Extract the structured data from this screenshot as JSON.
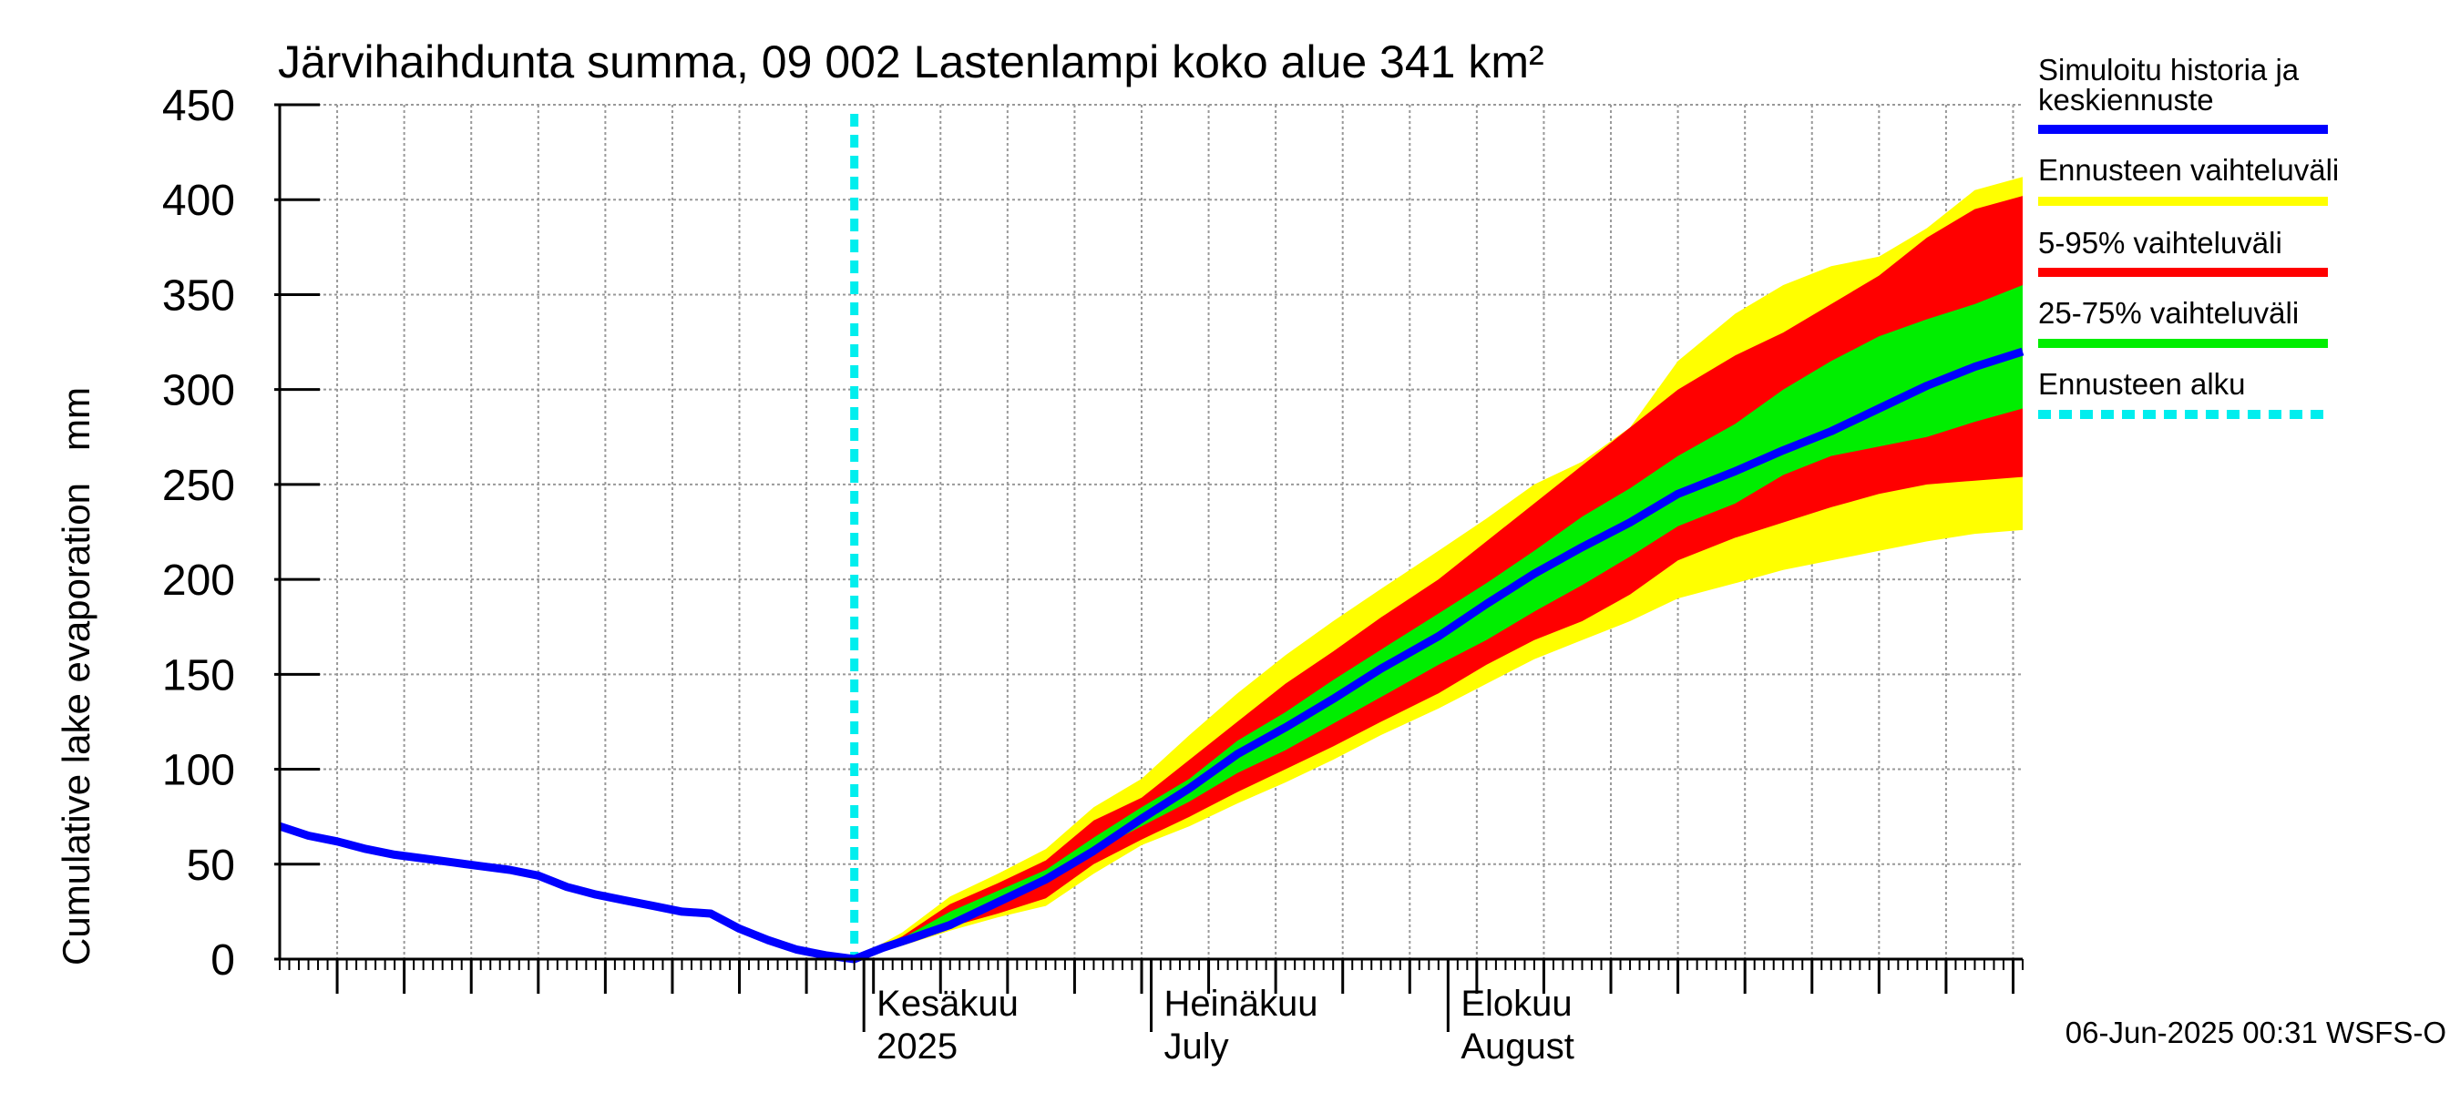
{
  "chart_data": {
    "type": "area",
    "title": "Järvihaihdunta summa, 09 002 Lastenlampi koko alue 341 km²",
    "ylabel": "Cumulative lake evaporation   mm",
    "ylim": [
      0,
      450
    ],
    "yticks": [
      0,
      50,
      100,
      150,
      200,
      250,
      300,
      350,
      400,
      450
    ],
    "xlim": [
      "2025-04-01",
      "2025-09-30"
    ],
    "x_month_labels": [
      {
        "date": "2025-06-01",
        "line1": "Kesäkuu",
        "line2": "2025"
      },
      {
        "date": "2025-07-01",
        "line1": "Heinäkuu",
        "line2": "July"
      },
      {
        "date": "2025-08-01",
        "line1": "Elokuu",
        "line2": "August"
      }
    ],
    "grid": true,
    "forecast_start": "2025-05-31",
    "timestamp": "06-Jun-2025 00:31 WSFS-O",
    "legend": [
      {
        "label": "Simuloitu historia ja keskiennuste",
        "color": "#0000ff",
        "style": "solid"
      },
      {
        "label": "Ennusteen vaihteluväli",
        "color": "#ffff00",
        "style": "solid"
      },
      {
        "label": "5-95% vaihteluväli",
        "color": "#ff0000",
        "style": "solid"
      },
      {
        "label": "25-75% vaihteluväli",
        "color": "#00ee00",
        "style": "solid"
      },
      {
        "label": "Ennusteen alku",
        "color": "#00eeee",
        "style": "dashed"
      }
    ],
    "bands": {
      "x": [
        "2025-05-31",
        "2025-06-05",
        "2025-06-10",
        "2025-06-15",
        "2025-06-20",
        "2025-06-25",
        "2025-06-30",
        "2025-07-05",
        "2025-07-10",
        "2025-07-15",
        "2025-07-20",
        "2025-07-25",
        "2025-07-31",
        "2025-08-05",
        "2025-08-10",
        "2025-08-15",
        "2025-08-20",
        "2025-08-25",
        "2025-08-31",
        "2025-09-05",
        "2025-09-10",
        "2025-09-15",
        "2025-09-20",
        "2025-09-25",
        "2025-09-30"
      ],
      "yellow_low": [
        0,
        7,
        15,
        22,
        28,
        45,
        60,
        70,
        82,
        93,
        105,
        118,
        132,
        145,
        158,
        168,
        178,
        190,
        198,
        205,
        210,
        215,
        220,
        224,
        226
      ],
      "yellow_high": [
        0,
        14,
        33,
        45,
        58,
        80,
        95,
        118,
        140,
        160,
        178,
        195,
        215,
        232,
        250,
        262,
        280,
        315,
        340,
        355,
        365,
        370,
        385,
        405,
        412
      ],
      "red_low": [
        0,
        8,
        17,
        24,
        32,
        50,
        63,
        75,
        88,
        100,
        112,
        125,
        140,
        155,
        168,
        178,
        192,
        210,
        222,
        230,
        238,
        245,
        250,
        252,
        254
      ],
      "red_high": [
        0,
        12,
        29,
        40,
        52,
        73,
        85,
        105,
        125,
        145,
        162,
        180,
        200,
        220,
        240,
        260,
        280,
        300,
        318,
        330,
        345,
        360,
        380,
        395,
        402
      ],
      "green_low": [
        0,
        10,
        20,
        30,
        40,
        57,
        70,
        83,
        98,
        110,
        124,
        138,
        155,
        168,
        183,
        197,
        212,
        228,
        240,
        255,
        265,
        270,
        275,
        283,
        290
      ],
      "green_high": [
        0,
        11,
        25,
        36,
        47,
        64,
        80,
        95,
        115,
        130,
        147,
        163,
        182,
        198,
        215,
        233,
        248,
        265,
        282,
        300,
        315,
        328,
        337,
        345,
        355
      ]
    },
    "series": [
      {
        "name": "Simuloitu historia ja keskiennuste",
        "x": [
          "2025-04-01",
          "2025-04-04",
          "2025-04-07",
          "2025-04-10",
          "2025-04-13",
          "2025-04-16",
          "2025-04-19",
          "2025-04-22",
          "2025-04-25",
          "2025-04-28",
          "2025-05-01",
          "2025-05-04",
          "2025-05-07",
          "2025-05-10",
          "2025-05-13",
          "2025-05-16",
          "2025-05-19",
          "2025-05-22",
          "2025-05-25",
          "2025-05-28",
          "2025-05-31",
          "2025-06-03",
          "2025-06-06",
          "2025-06-10",
          "2025-06-15",
          "2025-06-20",
          "2025-06-25",
          "2025-06-30",
          "2025-07-05",
          "2025-07-10",
          "2025-07-15",
          "2025-07-20",
          "2025-07-25",
          "2025-07-31",
          "2025-08-05",
          "2025-08-10",
          "2025-08-15",
          "2025-08-20",
          "2025-08-25",
          "2025-08-31",
          "2025-09-05",
          "2025-09-10",
          "2025-09-15",
          "2025-09-20",
          "2025-09-25",
          "2025-09-30"
        ],
        "y": [
          70,
          65,
          62,
          58,
          55,
          53,
          51,
          49,
          47,
          44,
          38,
          34,
          31,
          28,
          25,
          24,
          16,
          10,
          5,
          2,
          0,
          6,
          11,
          18,
          30,
          42,
          57,
          74,
          90,
          108,
          122,
          137,
          153,
          170,
          187,
          203,
          217,
          230,
          245,
          257,
          268,
          278,
          290,
          302,
          312,
          320
        ]
      }
    ]
  }
}
